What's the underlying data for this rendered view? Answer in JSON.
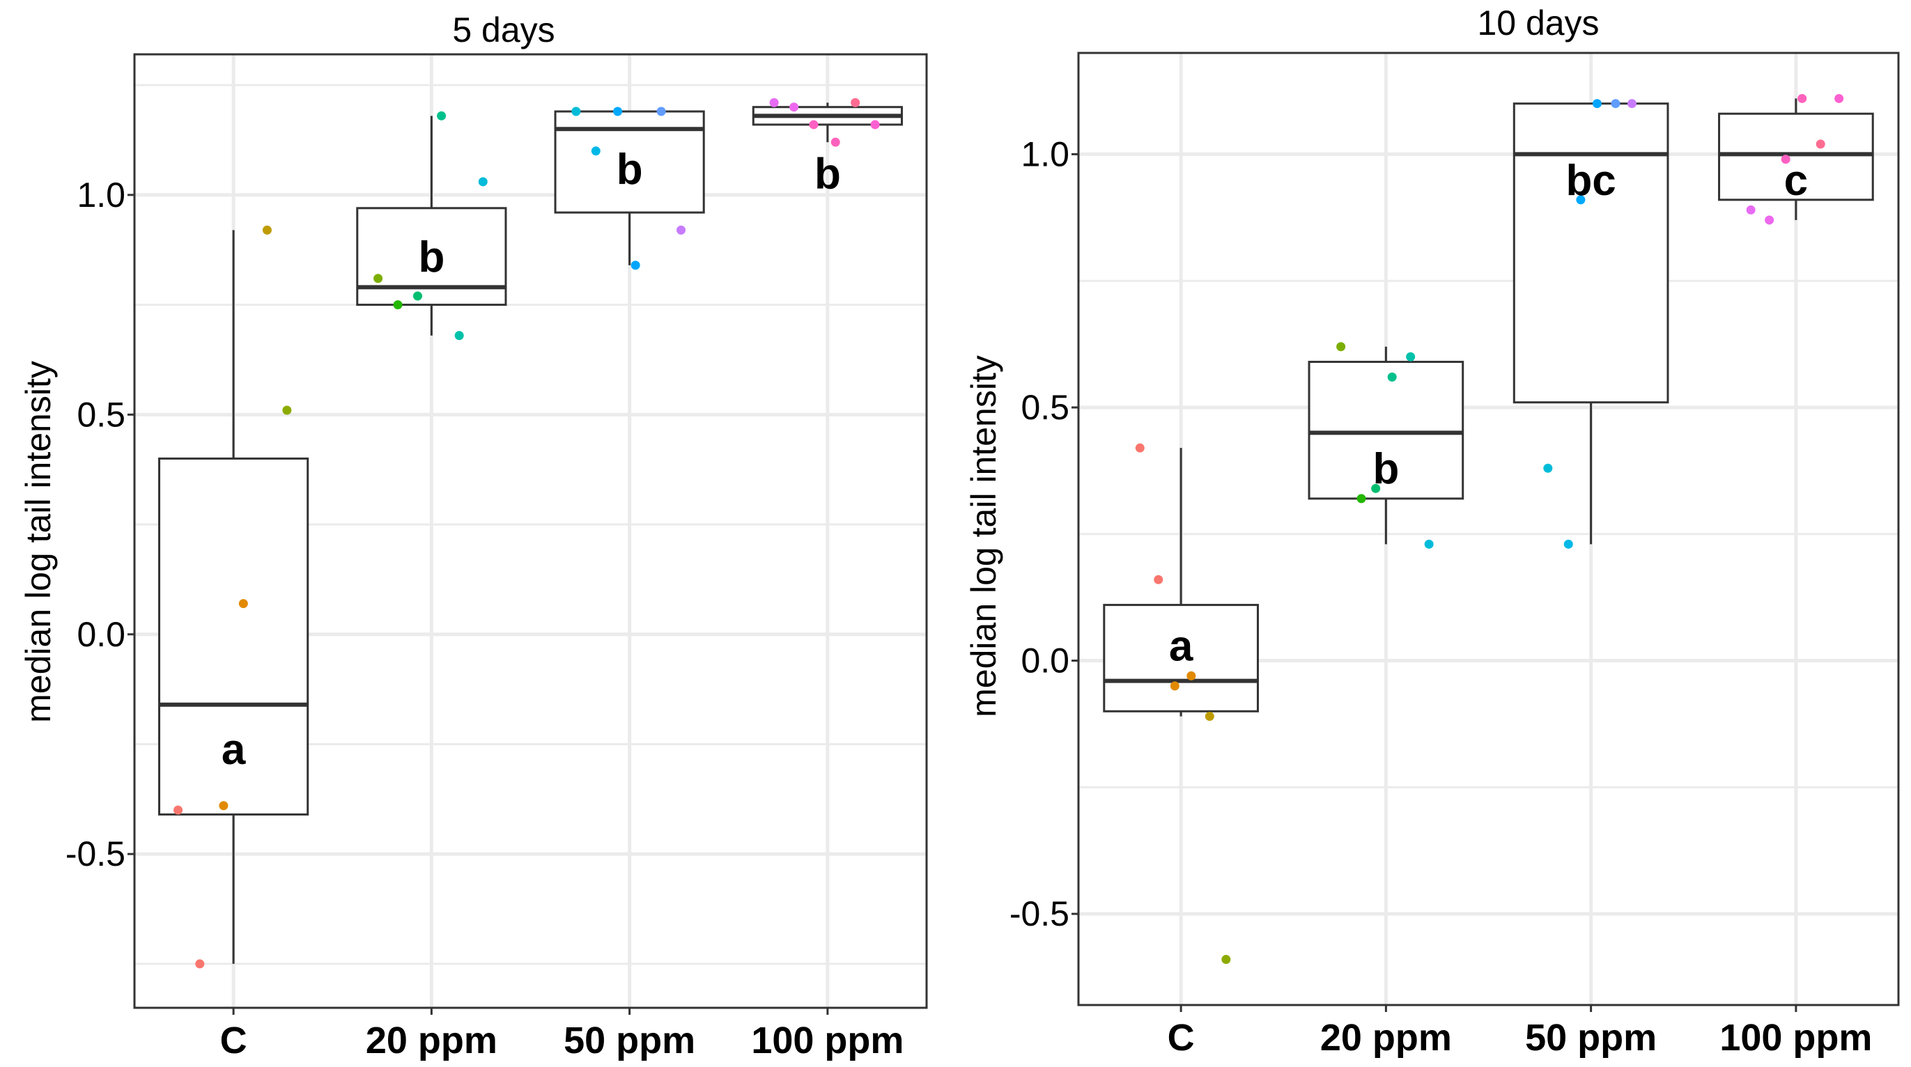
{
  "chart_data": [
    {
      "type": "box",
      "title": "5 days",
      "xlabel": "",
      "ylabel": "median log tail intensity",
      "categories": [
        "C",
        "20 ppm",
        "50 ppm",
        "100 ppm"
      ],
      "ylim": [
        -0.85,
        1.32
      ],
      "yticks": [
        -0.5,
        0.0,
        0.5,
        1.0
      ],
      "ytick_labels": [
        "-0.5",
        "0.0",
        "0.5",
        "1.0"
      ],
      "grid": true,
      "boxes": [
        {
          "category": "C",
          "min": -0.75,
          "q1": -0.41,
          "median": -0.16,
          "q3": 0.4,
          "max": 0.92,
          "label": "a"
        },
        {
          "category": "20 ppm",
          "min": 0.68,
          "q1": 0.75,
          "median": 0.79,
          "q3": 0.97,
          "max": 1.18,
          "label": "b"
        },
        {
          "category": "50 ppm",
          "min": 0.84,
          "q1": 0.96,
          "median": 1.15,
          "q3": 1.19,
          "max": 1.19,
          "label": "b"
        },
        {
          "category": "100 ppm",
          "min": 1.12,
          "q1": 1.16,
          "median": 1.18,
          "q3": 1.2,
          "max": 1.21,
          "label": "b"
        }
      ],
      "points": [
        {
          "category": "C",
          "offset": -0.28,
          "value": -0.4,
          "color": "#F8766D"
        },
        {
          "category": "C",
          "offset": -0.17,
          "value": -0.75,
          "color": "#F8766D"
        },
        {
          "category": "C",
          "offset": -0.05,
          "value": -0.39,
          "color": "#E18A00"
        },
        {
          "category": "C",
          "offset": 0.05,
          "value": 0.07,
          "color": "#E18A00"
        },
        {
          "category": "C",
          "offset": 0.17,
          "value": 0.92,
          "color": "#BE9C00"
        },
        {
          "category": "C",
          "offset": 0.27,
          "value": 0.51,
          "color": "#8CAB00"
        },
        {
          "category": "20 ppm",
          "offset": -0.27,
          "value": 0.81,
          "color": "#7CAE00"
        },
        {
          "category": "20 ppm",
          "offset": -0.17,
          "value": 0.75,
          "color": "#24B700"
        },
        {
          "category": "20 ppm",
          "offset": -0.07,
          "value": 0.77,
          "color": "#00BE70"
        },
        {
          "category": "20 ppm",
          "offset": 0.05,
          "value": 1.18,
          "color": "#00C08B"
        },
        {
          "category": "20 ppm",
          "offset": 0.14,
          "value": 0.68,
          "color": "#00C1A9"
        },
        {
          "category": "20 ppm",
          "offset": 0.26,
          "value": 1.03,
          "color": "#00BBDA"
        },
        {
          "category": "50 ppm",
          "offset": -0.27,
          "value": 1.19,
          "color": "#00BCD8"
        },
        {
          "category": "50 ppm",
          "offset": -0.17,
          "value": 1.1,
          "color": "#00B8E7"
        },
        {
          "category": "50 ppm",
          "offset": -0.06,
          "value": 1.19,
          "color": "#00A9FF"
        },
        {
          "category": "50 ppm",
          "offset": 0.03,
          "value": 0.84,
          "color": "#00A5FF"
        },
        {
          "category": "50 ppm",
          "offset": 0.16,
          "value": 1.19,
          "color": "#619CFF"
        },
        {
          "category": "50 ppm",
          "offset": 0.26,
          "value": 0.92,
          "color": "#C77CFF"
        },
        {
          "category": "100 ppm",
          "offset": -0.27,
          "value": 1.21,
          "color": "#E76BF3"
        },
        {
          "category": "100 ppm",
          "offset": -0.17,
          "value": 1.2,
          "color": "#ED68ED"
        },
        {
          "category": "100 ppm",
          "offset": -0.07,
          "value": 1.16,
          "color": "#FF61C3"
        },
        {
          "category": "100 ppm",
          "offset": 0.04,
          "value": 1.12,
          "color": "#FF62BC"
        },
        {
          "category": "100 ppm",
          "offset": 0.14,
          "value": 1.21,
          "color": "#FF6C91"
        },
        {
          "category": "100 ppm",
          "offset": 0.24,
          "value": 1.16,
          "color": "#FD61D1"
        }
      ]
    },
    {
      "type": "box",
      "title": "10 days",
      "xlabel": "",
      "ylabel": "median log tail intensity",
      "categories": [
        "C",
        "20 ppm",
        "50 ppm",
        "100 ppm"
      ],
      "ylim": [
        -0.68,
        1.2
      ],
      "yticks": [
        -0.5,
        0.0,
        0.5,
        1.0
      ],
      "ytick_labels": [
        "-0.5",
        "0.0",
        "0.5",
        "1.0"
      ],
      "grid": true,
      "boxes": [
        {
          "category": "C",
          "min": -0.11,
          "q1": -0.1,
          "median": -0.04,
          "q3": 0.11,
          "max": 0.42,
          "label": "a"
        },
        {
          "category": "20 ppm",
          "min": 0.23,
          "q1": 0.32,
          "median": 0.45,
          "q3": 0.59,
          "max": 0.62,
          "label": "b"
        },
        {
          "category": "50 ppm",
          "min": 0.23,
          "q1": 0.51,
          "median": 1.0,
          "q3": 1.1,
          "max": 1.1,
          "label": "bc"
        },
        {
          "category": "100 ppm",
          "min": 0.87,
          "q1": 0.91,
          "median": 1.0,
          "q3": 1.08,
          "max": 1.11,
          "label": "c"
        }
      ],
      "points": [
        {
          "category": "C",
          "offset": -0.2,
          "value": 0.42,
          "color": "#F8766D"
        },
        {
          "category": "C",
          "offset": -0.11,
          "value": 0.16,
          "color": "#F8766D"
        },
        {
          "category": "C",
          "offset": -0.03,
          "value": -0.05,
          "color": "#E18A00"
        },
        {
          "category": "C",
          "offset": 0.05,
          "value": -0.03,
          "color": "#E18A00"
        },
        {
          "category": "C",
          "offset": 0.14,
          "value": -0.11,
          "color": "#BE9C00"
        },
        {
          "category": "C",
          "offset": 0.22,
          "value": -0.59,
          "color": "#8CAB00"
        },
        {
          "category": "20 ppm",
          "offset": -0.22,
          "value": 0.62,
          "color": "#7CAE00"
        },
        {
          "category": "20 ppm",
          "offset": -0.12,
          "value": 0.32,
          "color": "#24B700"
        },
        {
          "category": "20 ppm",
          "offset": -0.05,
          "value": 0.34,
          "color": "#00BE70"
        },
        {
          "category": "20 ppm",
          "offset": 0.03,
          "value": 0.56,
          "color": "#00C08B"
        },
        {
          "category": "20 ppm",
          "offset": 0.12,
          "value": 0.6,
          "color": "#00C1A9"
        },
        {
          "category": "20 ppm",
          "offset": 0.21,
          "value": 0.23,
          "color": "#00BBDA"
        },
        {
          "category": "50 ppm",
          "offset": -0.21,
          "value": 0.38,
          "color": "#00BCD8"
        },
        {
          "category": "50 ppm",
          "offset": -0.11,
          "value": 0.23,
          "color": "#00B8E7"
        },
        {
          "category": "50 ppm",
          "offset": -0.05,
          "value": 0.91,
          "color": "#00A9FF"
        },
        {
          "category": "50 ppm",
          "offset": 0.03,
          "value": 1.1,
          "color": "#00A5FF"
        },
        {
          "category": "50 ppm",
          "offset": 0.12,
          "value": 1.1,
          "color": "#619CFF"
        },
        {
          "category": "50 ppm",
          "offset": 0.2,
          "value": 1.1,
          "color": "#C77CFF"
        },
        {
          "category": "100 ppm",
          "offset": -0.22,
          "value": 0.89,
          "color": "#E76BF3"
        },
        {
          "category": "100 ppm",
          "offset": -0.13,
          "value": 0.87,
          "color": "#ED68ED"
        },
        {
          "category": "100 ppm",
          "offset": -0.05,
          "value": 0.99,
          "color": "#FF61C3"
        },
        {
          "category": "100 ppm",
          "offset": 0.03,
          "value": 1.11,
          "color": "#FF62BC"
        },
        {
          "category": "100 ppm",
          "offset": 0.12,
          "value": 1.02,
          "color": "#FF6C91"
        },
        {
          "category": "100 ppm",
          "offset": 0.21,
          "value": 1.11,
          "color": "#FD61D1"
        }
      ]
    }
  ],
  "colors": {
    "grid": "#EBEBEB",
    "axis": "#333333",
    "box_stroke": "#333333",
    "background": "#FFFFFF"
  }
}
